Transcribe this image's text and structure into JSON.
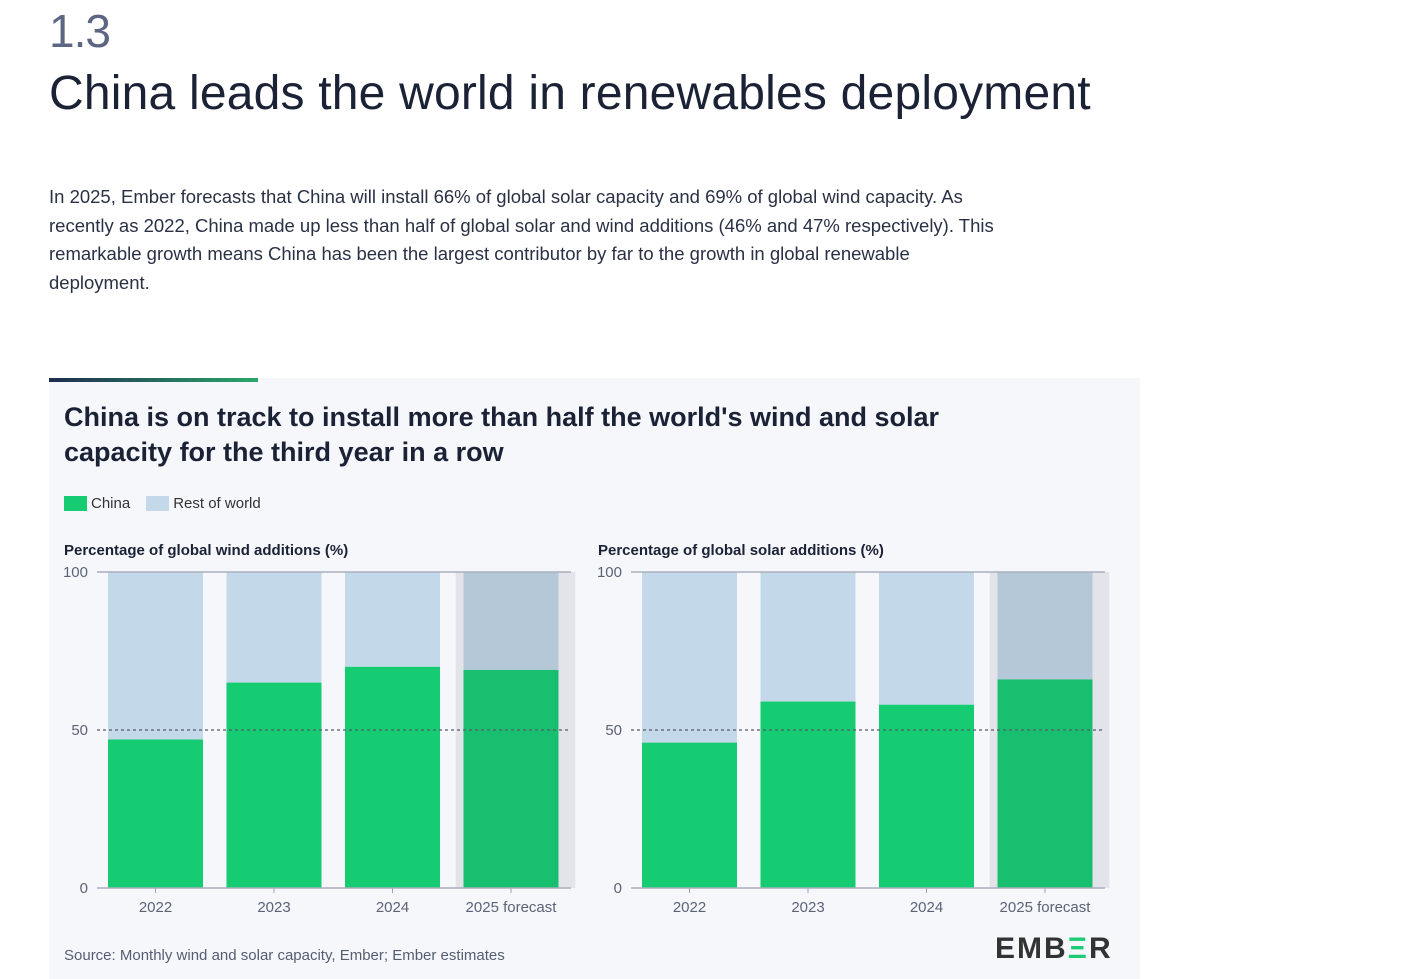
{
  "section_number": "1.3",
  "page_title": "China leads the world in renewables deployment",
  "intro": "In 2025, Ember forecasts that China will install 66% of global solar capacity and 69% of global wind capacity. As recently as 2022, China made up less than half of global solar and wind additions (46% and 47% respectively). This remarkable growth means China has been the largest contributor by far to the growth in global renewable deployment.",
  "chart_title": "China is on track to install more than half the world's wind and solar capacity for the third year in a row",
  "legend": [
    {
      "label": "China",
      "color": "#16cc72"
    },
    {
      "label": "Rest of world",
      "color": "#c3d8e8"
    }
  ],
  "source": "Source: Monthly wind and solar capacity, Ember; Ember estimates",
  "logo": "EMBER",
  "chart_data": [
    {
      "type": "bar",
      "stacked": true,
      "title": "Percentage of global wind additions (%)",
      "categories": [
        "2022",
        "2023",
        "2024",
        "2025 forecast"
      ],
      "series": [
        {
          "name": "China",
          "values": [
            47,
            65,
            70,
            69
          ]
        },
        {
          "name": "Rest of world",
          "values": [
            53,
            35,
            30,
            31
          ]
        }
      ],
      "ylim": [
        0,
        100
      ],
      "yticks": [
        0,
        50,
        100
      ],
      "reference_line": 50,
      "forecast_category": "2025 forecast"
    },
    {
      "type": "bar",
      "stacked": true,
      "title": "Percentage of global solar additions (%)",
      "categories": [
        "2022",
        "2023",
        "2024",
        "2025 forecast"
      ],
      "series": [
        {
          "name": "China",
          "values": [
            46,
            59,
            58,
            66
          ]
        },
        {
          "name": "Rest of world",
          "values": [
            54,
            41,
            42,
            34
          ]
        }
      ],
      "ylim": [
        0,
        100
      ],
      "yticks": [
        0,
        50,
        100
      ],
      "reference_line": 50,
      "forecast_category": "2025 forecast"
    }
  ]
}
